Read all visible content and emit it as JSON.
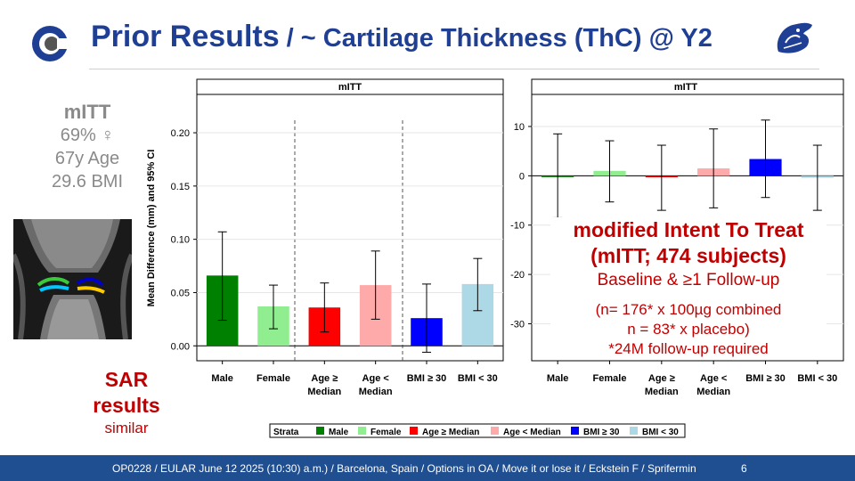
{
  "header": {
    "title_part1": "Prior Results",
    "title_part2": " / ~ Cartilage Thickness (ThC) @ Y2"
  },
  "left_panel": {
    "heading": "mITT",
    "female_pct": "69% ♀",
    "age": "67y Age",
    "bmi": "29.6 BMI"
  },
  "sar_note": {
    "line1": "SAR",
    "line2": "results",
    "line3": "similar"
  },
  "mitt_box": {
    "line1": "modified Intent To Treat",
    "line2": "(mITT; 474 subjects)",
    "line3": "Baseline & ≥1 Follow-up",
    "line4": "(n= 176* x 100µg combined",
    "line5": "n = 83* x placebo)",
    "line6": "*24M follow-up required"
  },
  "footer": {
    "text": "OP0228 / EULAR  June 12 2025 (10:30) a.m.) / Barcelona, Spain / Options in OA / Move it or lose it / Eckstein F / Sprifermin",
    "page": "6"
  },
  "colors": {
    "brand_blue": "#1f3f95",
    "accent_red": "#c00000",
    "footer_blue": "#1f4e91"
  },
  "legend": {
    "title": "Strata",
    "items": [
      {
        "label": "Male",
        "color": "#008000"
      },
      {
        "label": "Female",
        "color": "#90ee90"
      },
      {
        "label": "Age ≥ Median",
        "color": "#ff0000"
      },
      {
        "label": "Age < Median",
        "color": "#ffaaaa"
      },
      {
        "label": "BMI ≥ 30",
        "color": "#0000ff"
      },
      {
        "label": "BMI < 30",
        "color": "#add8e6"
      }
    ]
  },
  "chart_data": [
    {
      "type": "bar",
      "title": "mITT",
      "ylabel": "Mean Difference (mm) and 95% CI",
      "categories": [
        [
          "Male"
        ],
        [
          "Female"
        ],
        [
          "Age ≥",
          "Median"
        ],
        [
          "Age <",
          "Median"
        ],
        [
          "BMI ≥ 30"
        ],
        [
          "BMI < 30"
        ]
      ],
      "values": [
        0.066,
        0.037,
        0.036,
        0.057,
        0.026,
        0.058
      ],
      "ci_low": [
        0.024,
        0.016,
        0.013,
        0.025,
        -0.006,
        0.033
      ],
      "ci_high": [
        0.107,
        0.057,
        0.059,
        0.089,
        0.058,
        0.082
      ],
      "colors": [
        "#008000",
        "#90ee90",
        "#ff0000",
        "#ffaaaa",
        "#0000ff",
        "#add8e6"
      ],
      "yticks": [
        0.0,
        0.05,
        0.1,
        0.15,
        0.2
      ],
      "ytick_labels": [
        "0.00",
        "0.05",
        "0.10",
        "0.15",
        "0.20"
      ],
      "ylim": [
        -0.014,
        0.236
      ],
      "grid": true
    },
    {
      "type": "bar",
      "title": "mITT",
      "categories": [
        [
          "Male"
        ],
        [
          "Female"
        ],
        [
          "Age ≥",
          "Median"
        ],
        [
          "Age <",
          "Median"
        ],
        [
          "BMI ≥ 30"
        ],
        [
          "BMI < 30"
        ]
      ],
      "values": [
        -0.2,
        1.0,
        -0.3,
        1.5,
        3.4,
        -0.4
      ],
      "ci_low": [
        -8.5,
        -5.3,
        -7.0,
        -6.5,
        -4.4,
        -7.0
      ],
      "ci_high": [
        8.5,
        7.1,
        6.2,
        9.5,
        11.3,
        6.2
      ],
      "colors": [
        "#008000",
        "#90ee90",
        "#ff0000",
        "#ffaaaa",
        "#0000ff",
        "#add8e6"
      ],
      "yticks": [
        -30,
        -20,
        -10,
        0,
        10
      ],
      "ytick_labels": [
        "-30",
        "-20",
        "-10",
        "0",
        "10"
      ],
      "ylim": [
        -37.5,
        16.5
      ],
      "grid": true
    }
  ]
}
